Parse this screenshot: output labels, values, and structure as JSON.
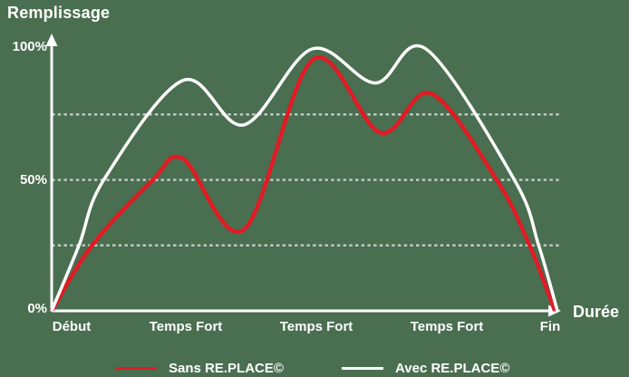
{
  "background_color": "#4a6e50",
  "chart_data": {
    "type": "line",
    "title": "Remplissage",
    "ylabel": "Remplissage",
    "xlabel": "Durée",
    "ylim": [
      0,
      100
    ],
    "xlim": [
      0,
      100
    ],
    "grid": "dashed-horizontal",
    "gridline_values": [
      25,
      50,
      75
    ],
    "gridline_color": "#d8d8d8",
    "axis_color": "#ffffff",
    "axis_arrows": true,
    "y_ticks": [
      {
        "label": "100%",
        "value": 100
      },
      {
        "label": "50%",
        "value": 50
      },
      {
        "label": "0%",
        "value": 0
      }
    ],
    "x_ticks": [
      {
        "label": "Début",
        "position": 4
      },
      {
        "label": "Temps Fort",
        "position": 26.5
      },
      {
        "label": "Temps Fort",
        "position": 52.3
      },
      {
        "label": "Temps Fort",
        "position": 78.1
      },
      {
        "label": "Fin",
        "position": 98.6
      }
    ],
    "legend_position": "bottom",
    "series": [
      {
        "name": "Sans RE.PLACE©",
        "color": "#e01b24",
        "stroke_width": 4.5,
        "points": [
          [
            0,
            0
          ],
          [
            8,
            25
          ],
          [
            20,
            50
          ],
          [
            26,
            58
          ],
          [
            38,
            31
          ],
          [
            51.7,
            96
          ],
          [
            65,
            68
          ],
          [
            75,
            83
          ],
          [
            88,
            50
          ],
          [
            94.5,
            25
          ],
          [
            99.5,
            0
          ]
        ]
      },
      {
        "name": "Avec RE.PLACE©",
        "color": "#ffffff",
        "stroke_width": 3.5,
        "points": [
          [
            0,
            0
          ],
          [
            5.4,
            25
          ],
          [
            10.3,
            50
          ],
          [
            26,
            88
          ],
          [
            38,
            71
          ],
          [
            51.5,
            100
          ],
          [
            64,
            87
          ],
          [
            74,
            100
          ],
          [
            91.5,
            50
          ],
          [
            96.3,
            25
          ],
          [
            100,
            0
          ]
        ]
      }
    ]
  }
}
